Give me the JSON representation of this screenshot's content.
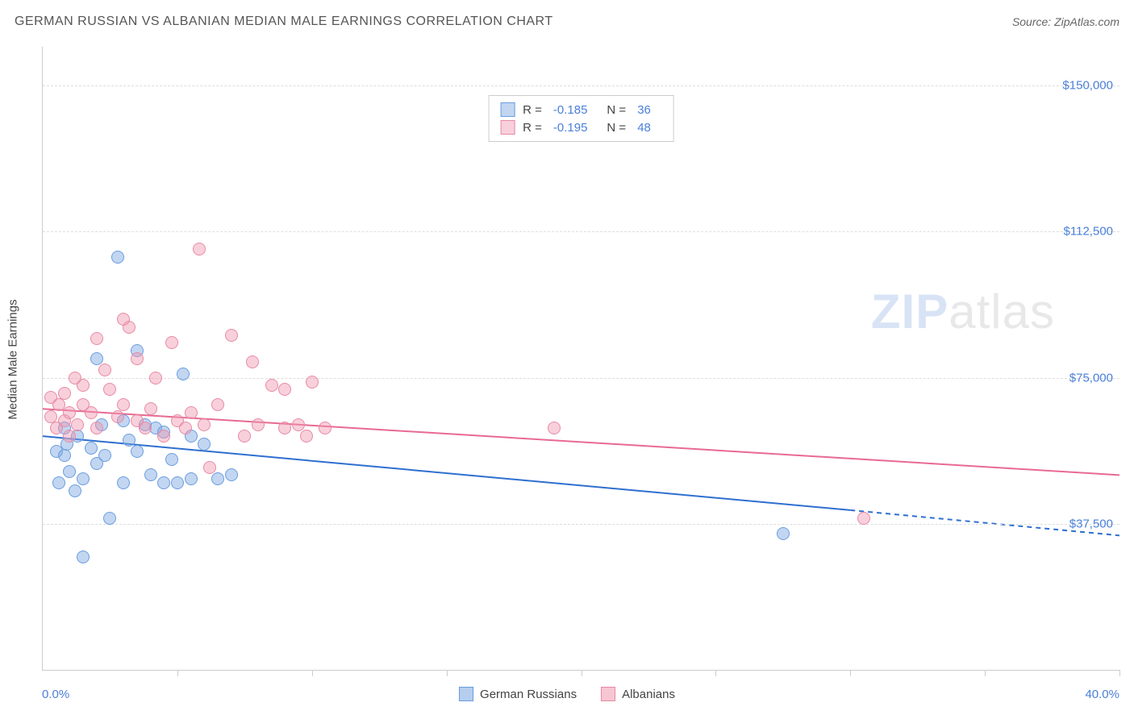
{
  "title": "GERMAN RUSSIAN VS ALBANIAN MEDIAN MALE EARNINGS CORRELATION CHART",
  "source": "Source: ZipAtlas.com",
  "y_axis_title": "Median Male Earnings",
  "watermark_bold": "ZIP",
  "watermark_light": "atlas",
  "chart": {
    "type": "scatter",
    "xlim": [
      0,
      40
    ],
    "ylim": [
      0,
      160000
    ],
    "x_start_label": "0.0%",
    "x_end_label": "40.0%",
    "x_tick_positions": [
      0,
      5,
      10,
      15,
      20,
      25,
      30,
      35,
      40
    ],
    "y_ticks": [
      {
        "value": 37500,
        "label": "$37,500"
      },
      {
        "value": 75000,
        "label": "$75,000"
      },
      {
        "value": 112500,
        "label": "$112,500"
      },
      {
        "value": 150000,
        "label": "$150,000"
      }
    ],
    "grid_color": "#dddddd",
    "background_color": "#ffffff",
    "axis_color": "#cccccc",
    "tick_label_color": "#4a7fd8",
    "axis_title_color": "#444444",
    "series": [
      {
        "name": "German Russians",
        "fill_color": "rgba(120,165,225,0.45)",
        "stroke_color": "#6a9de0",
        "line_color": "#2e6fd0",
        "line_solid": {
          "x1": 0,
          "y1": 60000,
          "x2": 30,
          "y2": 41000
        },
        "line_dashed": {
          "x1": 30,
          "y1": 41000,
          "x2": 40,
          "y2": 34500
        },
        "marker_radius": 8,
        "R_label": "R =",
        "R_value": "-0.185",
        "N_label": "N =",
        "N_value": "36",
        "points": [
          [
            0.5,
            56000
          ],
          [
            0.6,
            48000
          ],
          [
            0.8,
            62000
          ],
          [
            0.8,
            55000
          ],
          [
            0.9,
            58000
          ],
          [
            1.0,
            51000
          ],
          [
            1.2,
            46000
          ],
          [
            1.3,
            60000
          ],
          [
            1.5,
            29000
          ],
          [
            1.5,
            49000
          ],
          [
            1.8,
            57000
          ],
          [
            2.0,
            80000
          ],
          [
            2.2,
            63000
          ],
          [
            2.3,
            55000
          ],
          [
            2.5,
            39000
          ],
          [
            2.8,
            106000
          ],
          [
            3.0,
            64000
          ],
          [
            3.0,
            48000
          ],
          [
            3.2,
            59000
          ],
          [
            3.5,
            56000
          ],
          [
            3.5,
            82000
          ],
          [
            4.0,
            50000
          ],
          [
            4.2,
            62000
          ],
          [
            4.5,
            48000
          ],
          [
            4.5,
            61000
          ],
          [
            4.8,
            54000
          ],
          [
            5.0,
            48000
          ],
          [
            5.2,
            76000
          ],
          [
            5.5,
            60000
          ],
          [
            5.5,
            49000
          ],
          [
            6.0,
            58000
          ],
          [
            6.5,
            49000
          ],
          [
            7.0,
            50000
          ],
          [
            27.5,
            35000
          ],
          [
            3.8,
            63000
          ],
          [
            2.0,
            53000
          ]
        ]
      },
      {
        "name": "Albanians",
        "fill_color": "rgba(240,150,175,0.45)",
        "stroke_color": "#e88aa5",
        "line_color": "#e86a92",
        "line_solid": {
          "x1": 0,
          "y1": 67000,
          "x2": 40,
          "y2": 50000
        },
        "line_dashed": null,
        "marker_radius": 8,
        "R_label": "R =",
        "R_value": "-0.195",
        "N_label": "N =",
        "N_value": "48",
        "points": [
          [
            0.3,
            70000
          ],
          [
            0.3,
            65000
          ],
          [
            0.5,
            62000
          ],
          [
            0.6,
            68000
          ],
          [
            0.8,
            64000
          ],
          [
            0.8,
            71000
          ],
          [
            1.0,
            60000
          ],
          [
            1.0,
            66000
          ],
          [
            1.2,
            75000
          ],
          [
            1.3,
            63000
          ],
          [
            1.5,
            68000
          ],
          [
            1.5,
            73000
          ],
          [
            1.8,
            66000
          ],
          [
            2.0,
            85000
          ],
          [
            2.0,
            62000
          ],
          [
            2.3,
            77000
          ],
          [
            2.5,
            72000
          ],
          [
            2.8,
            65000
          ],
          [
            3.0,
            68000
          ],
          [
            3.2,
            88000
          ],
          [
            3.5,
            64000
          ],
          [
            3.5,
            80000
          ],
          [
            3.8,
            62000
          ],
          [
            4.0,
            67000
          ],
          [
            4.2,
            75000
          ],
          [
            4.5,
            60000
          ],
          [
            4.8,
            84000
          ],
          [
            5.0,
            64000
          ],
          [
            5.3,
            62000
          ],
          [
            5.5,
            66000
          ],
          [
            5.8,
            108000
          ],
          [
            6.0,
            63000
          ],
          [
            6.2,
            52000
          ],
          [
            6.5,
            68000
          ],
          [
            7.0,
            86000
          ],
          [
            7.5,
            60000
          ],
          [
            7.8,
            79000
          ],
          [
            8.0,
            63000
          ],
          [
            8.5,
            73000
          ],
          [
            9.0,
            62000
          ],
          [
            9.0,
            72000
          ],
          [
            9.5,
            63000
          ],
          [
            9.8,
            60000
          ],
          [
            10.0,
            74000
          ],
          [
            10.5,
            62000
          ],
          [
            19.0,
            62000
          ],
          [
            30.5,
            39000
          ],
          [
            3.0,
            90000
          ]
        ]
      }
    ]
  },
  "legend_bottom": [
    {
      "label": "German Russians",
      "fill": "rgba(120,165,225,0.55)",
      "stroke": "#6a9de0"
    },
    {
      "label": "Albanians",
      "fill": "rgba(240,150,175,0.55)",
      "stroke": "#e88aa5"
    }
  ]
}
